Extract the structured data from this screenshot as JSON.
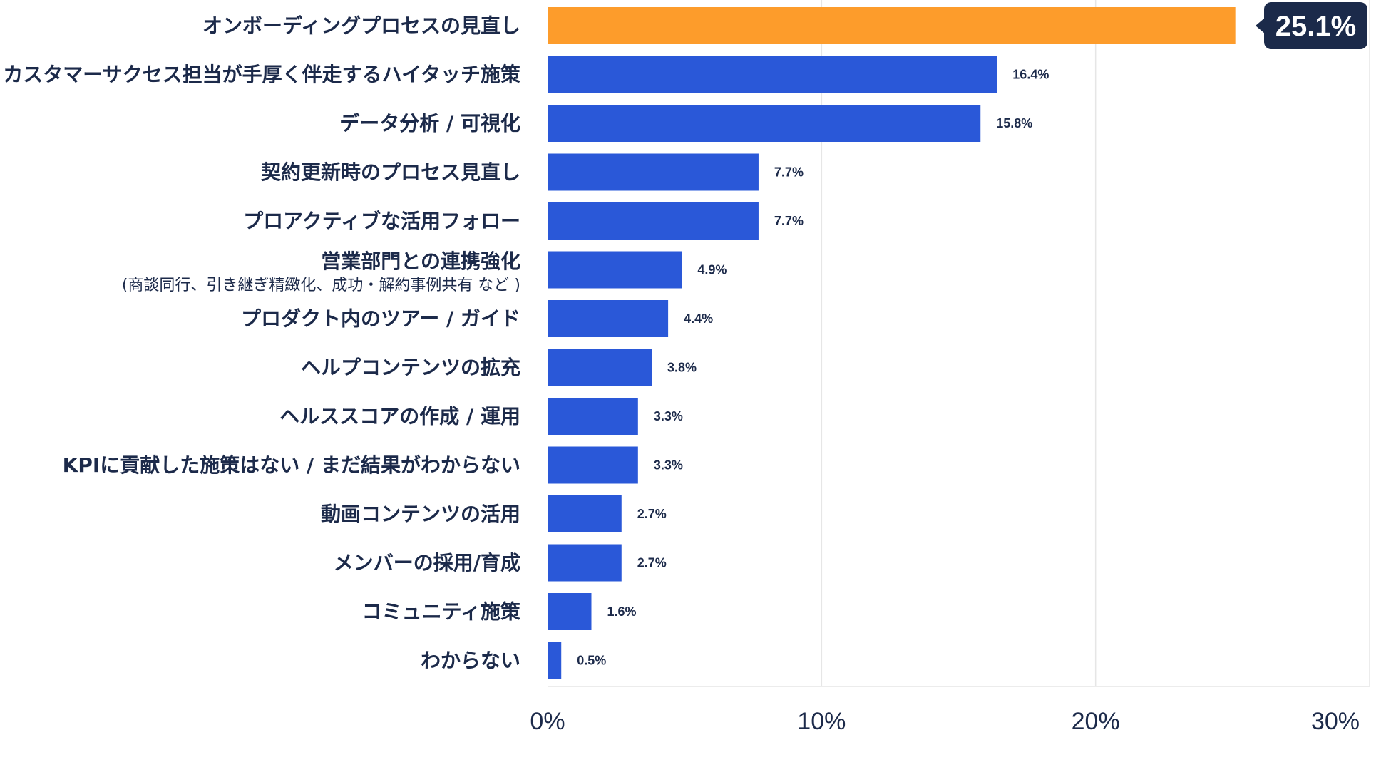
{
  "chart_data": {
    "type": "bar",
    "orientation": "horizontal",
    "categories": [
      "オンボーディングプロセスの見直し",
      "カスタマーサクセス担当が手厚く伴走するハイタッチ施策",
      "データ分析 / 可視化",
      "契約更新時のプロセス見直し",
      "プロアクティブな活用フォロー",
      "営業部門との連携強化",
      "プロダクト内のツアー / ガイド",
      "ヘルプコンテンツの拡充",
      "ヘルススコアの作成 / 運用",
      "KPIに貢献した施策はない / まだ結果がわからない",
      "動画コンテンツの活用",
      "メンバーの採用/育成",
      "コミュニティ施策",
      "わからない"
    ],
    "sublabels": {
      "5": "(商談同行、引き継ぎ精緻化、成功・解約事例共有 など )"
    },
    "values": [
      25.1,
      16.4,
      15.8,
      7.7,
      7.7,
      4.9,
      4.4,
      3.8,
      3.3,
      3.3,
      2.7,
      2.7,
      1.6,
      0.5
    ],
    "value_labels": [
      "25.1%",
      "16.4%",
      "15.8%",
      "7.7%",
      "7.7%",
      "4.9%",
      "4.4%",
      "3.8%",
      "3.3%",
      "3.3%",
      "2.7%",
      "2.7%",
      "1.6%",
      "0.5%"
    ],
    "highlight_index": 0,
    "xlim": [
      0,
      30
    ],
    "xticks": [
      0,
      10,
      20,
      30
    ],
    "xtick_labels": [
      "0%",
      "10%",
      "20%",
      "30%"
    ],
    "title": "",
    "xlabel": "",
    "ylabel": "",
    "grid": true,
    "legend": "none"
  },
  "colors": {
    "bar": "#2a58d8",
    "highlight_bar": "#fd9c2b",
    "callout_bg": "#1b2a4a",
    "text": "#1c2a4a",
    "grid": "#e6e6e6"
  }
}
